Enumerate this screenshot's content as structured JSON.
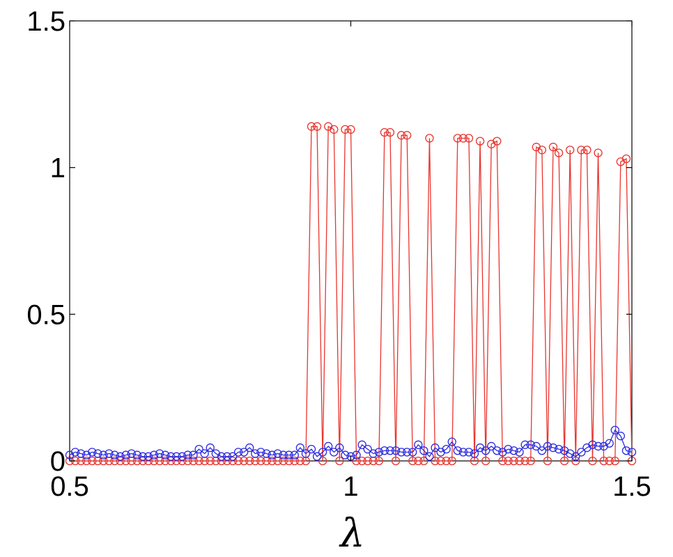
{
  "chart_data": {
    "type": "line",
    "xlabel": "λ",
    "ylabel": "",
    "title": "",
    "xlim": [
      0.5,
      1.5
    ],
    "ylim": [
      0,
      1.5
    ],
    "x_ticks": [
      0.5,
      1,
      1.5
    ],
    "x_tick_labels": [
      "0.5",
      "1",
      "1.5"
    ],
    "y_ticks": [
      0,
      0.5,
      1,
      1.5
    ],
    "y_tick_labels": [
      "0",
      "0.5",
      "1",
      "1.5"
    ],
    "grid": false,
    "legend": false,
    "x": [
      0.5,
      0.51,
      0.52,
      0.53,
      0.54,
      0.55,
      0.56,
      0.57,
      0.58,
      0.59,
      0.6,
      0.61,
      0.62,
      0.63,
      0.64,
      0.65,
      0.66,
      0.67,
      0.68,
      0.69,
      0.7,
      0.71,
      0.72,
      0.73,
      0.74,
      0.75,
      0.76,
      0.77,
      0.78,
      0.79,
      0.8,
      0.81,
      0.82,
      0.83,
      0.84,
      0.85,
      0.86,
      0.87,
      0.88,
      0.89,
      0.9,
      0.91,
      0.92,
      0.93,
      0.94,
      0.95,
      0.96,
      0.97,
      0.98,
      0.99,
      1.0,
      1.01,
      1.02,
      1.03,
      1.04,
      1.05,
      1.06,
      1.07,
      1.08,
      1.09,
      1.1,
      1.11,
      1.12,
      1.13,
      1.14,
      1.15,
      1.16,
      1.17,
      1.18,
      1.19,
      1.2,
      1.21,
      1.22,
      1.23,
      1.24,
      1.25,
      1.26,
      1.27,
      1.28,
      1.29,
      1.3,
      1.31,
      1.32,
      1.33,
      1.34,
      1.35,
      1.36,
      1.37,
      1.38,
      1.39,
      1.4,
      1.41,
      1.42,
      1.43,
      1.44,
      1.45,
      1.46,
      1.47,
      1.48,
      1.49,
      1.5
    ],
    "series": [
      {
        "color": "#e8352f",
        "values": [
          0,
          0,
          0,
          0,
          0,
          0,
          0,
          0,
          0,
          0,
          0,
          0,
          0,
          0,
          0,
          0,
          0,
          0,
          0,
          0,
          0,
          0,
          0,
          0,
          0,
          0,
          0,
          0,
          0,
          0,
          0,
          0,
          0,
          0,
          0,
          0,
          0,
          0,
          0,
          0,
          0,
          0,
          0,
          1.14,
          1.14,
          0,
          1.14,
          1.13,
          0,
          1.13,
          1.13,
          0,
          0,
          0,
          0,
          0,
          1.12,
          1.12,
          0,
          1.11,
          1.11,
          0,
          0,
          0,
          1.1,
          0,
          0,
          0,
          0,
          1.1,
          1.1,
          1.1,
          0,
          1.09,
          0,
          1.08,
          1.09,
          0,
          0,
          0,
          0,
          0,
          0,
          1.07,
          1.06,
          0,
          1.07,
          1.05,
          0,
          1.06,
          0,
          1.06,
          1.06,
          0,
          1.05,
          0,
          0,
          0,
          1.02,
          1.03,
          0
        ]
      },
      {
        "color": "#2b2be0",
        "values": [
          0.02,
          0.03,
          0.025,
          0.02,
          0.03,
          0.025,
          0.02,
          0.025,
          0.02,
          0.015,
          0.02,
          0.025,
          0.02,
          0.015,
          0.015,
          0.02,
          0.025,
          0.02,
          0.015,
          0.015,
          0.015,
          0.02,
          0.02,
          0.04,
          0.025,
          0.045,
          0.025,
          0.015,
          0.015,
          0.015,
          0.03,
          0.03,
          0.045,
          0.025,
          0.03,
          0.025,
          0.02,
          0.025,
          0.02,
          0.02,
          0.02,
          0.045,
          0.025,
          0.04,
          0.015,
          0.03,
          0.05,
          0.03,
          0.045,
          0.02,
          0.015,
          0.02,
          0.055,
          0.04,
          0.025,
          0.03,
          0.035,
          0.035,
          0.035,
          0.03,
          0.03,
          0.03,
          0.055,
          0.035,
          0.015,
          0.045,
          0.03,
          0.04,
          0.065,
          0.035,
          0.03,
          0.03,
          0.025,
          0.045,
          0.035,
          0.05,
          0.035,
          0.03,
          0.04,
          0.035,
          0.03,
          0.055,
          0.055,
          0.05,
          0.035,
          0.05,
          0.045,
          0.04,
          0.035,
          0.025,
          0.015,
          0.03,
          0.045,
          0.055,
          0.05,
          0.05,
          0.06,
          0.105,
          0.085,
          0.035,
          0.03
        ]
      }
    ]
  }
}
